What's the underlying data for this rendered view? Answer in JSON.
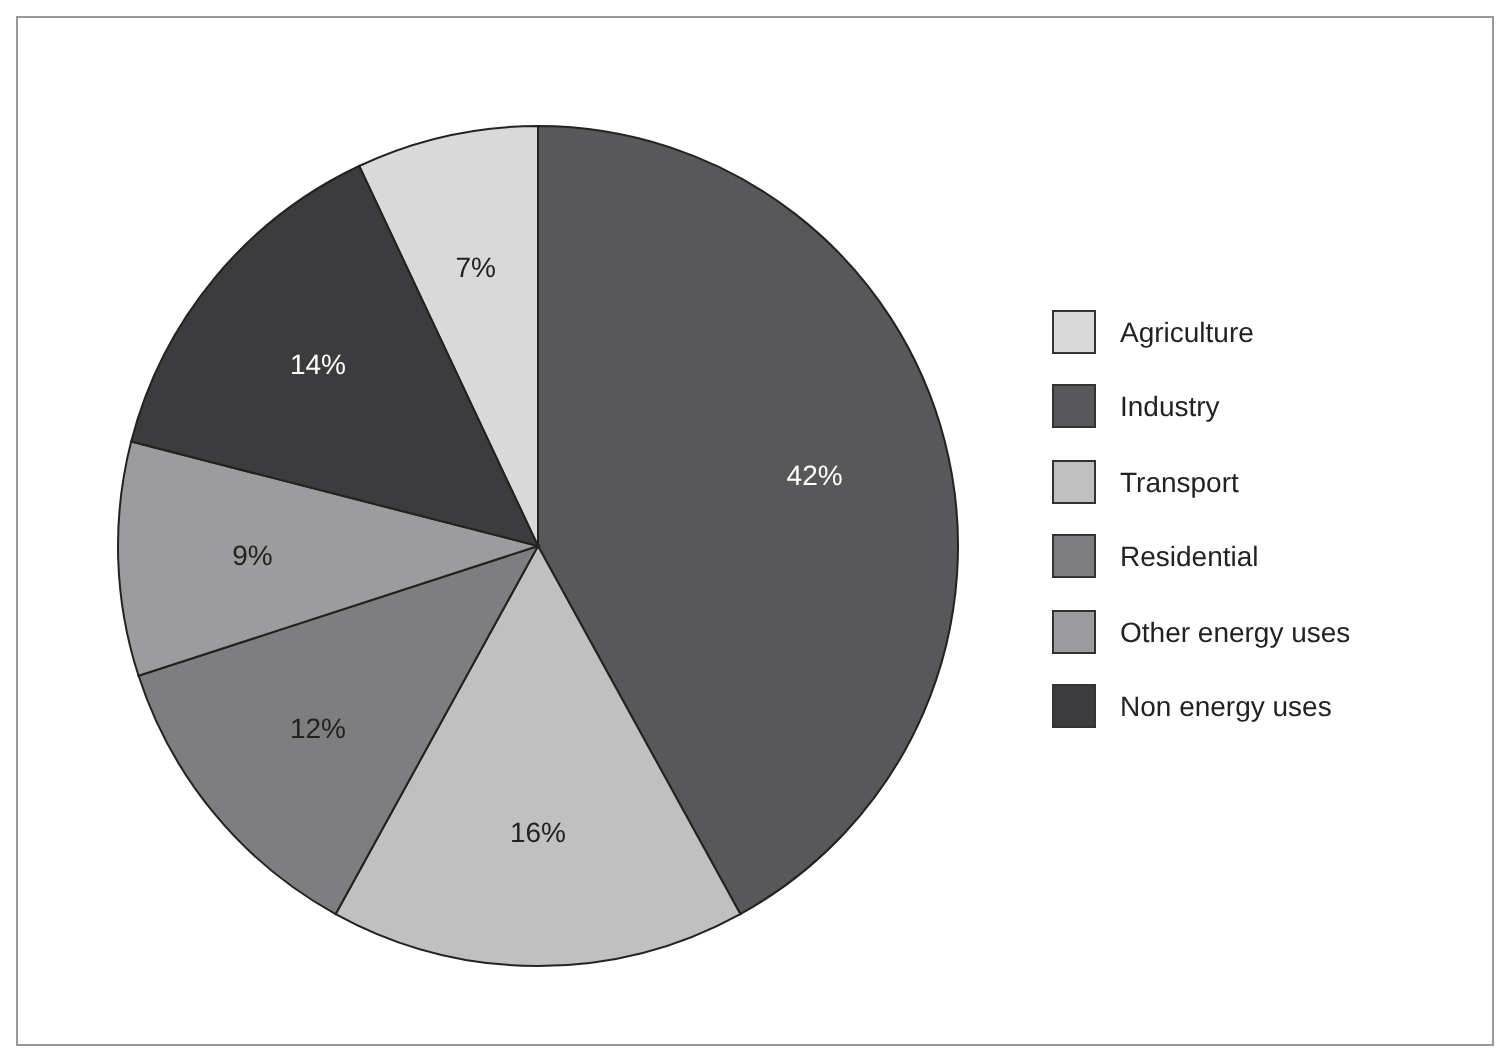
{
  "chart_data": {
    "type": "pie",
    "categories": [
      "Agriculture",
      "Industry",
      "Transport",
      "Residential",
      "Other energy uses",
      "Non energy uses"
    ],
    "values": [
      7,
      42,
      16,
      12,
      9,
      14
    ],
    "value_labels": [
      "7%",
      "42%",
      "16%",
      "12%",
      "9%",
      "14%"
    ],
    "colors": [
      "#d9d9d9",
      "#58585a",
      "#c0c0c0",
      "#7e7e80",
      "#9c9c9e",
      "#3c3c3e"
    ],
    "legend": "right"
  }
}
